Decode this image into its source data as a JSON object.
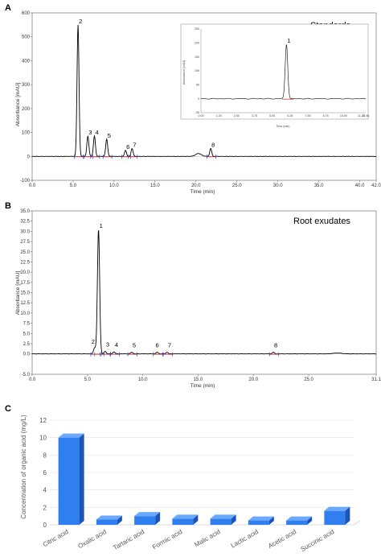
{
  "chart_data": [
    {
      "panel": "A",
      "type": "line",
      "title": "Standards",
      "xlabel": "Time (min)",
      "ylabel": "Absorbance [mAU]",
      "xlim": [
        0,
        42
      ],
      "ylim": [
        -100,
        600
      ],
      "xticks": [
        "0.0",
        "5.0",
        "10.0",
        "15.0",
        "20.0",
        "25.0",
        "30.0",
        "35.0",
        "40.0",
        "42.0"
      ],
      "yticks": [
        "-100",
        "0",
        "100",
        "200",
        "300",
        "400",
        "500",
        "600"
      ],
      "peaks": [
        {
          "label": "2",
          "rt": 5.6,
          "height": 550
        },
        {
          "label": "3",
          "rt": 6.8,
          "height": 85
        },
        {
          "label": "4",
          "rt": 7.6,
          "height": 85
        },
        {
          "label": "5",
          "rt": 9.1,
          "height": 72
        },
        {
          "label": "6",
          "rt": 11.4,
          "height": 25
        },
        {
          "label": "7",
          "rt": 12.2,
          "height": 33
        },
        {
          "label": "8",
          "rt": 21.8,
          "height": 33
        }
      ],
      "inset": {
        "peaks": [
          {
            "label": "1",
            "rt": 6.0,
            "height": 195
          }
        ],
        "xlim": [
          0,
          11.56
        ],
        "ylim": [
          -50,
          250
        ],
        "xticks": [
          "0.00",
          "1.25",
          "2.50",
          "3.75",
          "5.00",
          "6.25",
          "7.50",
          "8.75",
          "10.00",
          "11.25",
          "11.56"
        ],
        "yticks": [
          "-50",
          "0",
          "50",
          "100",
          "150",
          "200",
          "250"
        ],
        "xlabel": "Time (min)",
        "ylabel": "Absorbance [mAU]"
      }
    },
    {
      "panel": "B",
      "type": "line",
      "title": "Root exudates",
      "xlabel": "Time (min)",
      "ylabel": "Absorbance [mAU]",
      "xlim": [
        0,
        31.1
      ],
      "ylim": [
        -5,
        35
      ],
      "xticks": [
        "0.0",
        "5.0",
        "10.0",
        "15.0",
        "20.0",
        "25.0",
        "31.1"
      ],
      "yticks": [
        "-5.0",
        "0.0",
        "2.5",
        "5.0",
        "7.5",
        "10.0",
        "12.5",
        "15.0",
        "17.5",
        "20.0",
        "22.5",
        "25.0",
        "27.5",
        "30.0",
        "32.5",
        "35.0"
      ],
      "peaks": [
        {
          "label": "1",
          "rt": 6.0,
          "height": 30.5
        },
        {
          "label": "2",
          "rt": 5.65,
          "height": 1.5
        },
        {
          "label": "3",
          "rt": 6.6,
          "height": 0.6
        },
        {
          "label": "4",
          "rt": 7.4,
          "height": 0.5
        },
        {
          "label": "5",
          "rt": 9.0,
          "height": 0.4
        },
        {
          "label": "6",
          "rt": 11.3,
          "height": 0.4
        },
        {
          "label": "7",
          "rt": 12.2,
          "height": 0.4
        },
        {
          "label": "8",
          "rt": 21.8,
          "height": 0.4
        }
      ]
    },
    {
      "panel": "C",
      "type": "bar",
      "categories": [
        "Citric acid",
        "Oxalic acid",
        "Tartaric acid",
        "Formic acid",
        "Malic acid",
        "Lactic acid",
        "Acetic acid",
        "Succinic acid"
      ],
      "values": [
        10.0,
        0.6,
        1.0,
        0.7,
        0.7,
        0.5,
        0.5,
        1.6
      ],
      "ylabel": "Concentration of organic acid (mg/L)",
      "ylim": [
        0,
        12
      ],
      "yticks": [
        "0",
        "2",
        "4",
        "6",
        "8",
        "10",
        "12"
      ],
      "color": "#2f7ff0"
    }
  ],
  "colors": {
    "trace": "#000000",
    "baseline": "#cc2222",
    "marker": "#2244cc",
    "bar": "#2f7ff0",
    "bar_side": "#1c55b8",
    "bar_top": "#6aa9ff"
  }
}
